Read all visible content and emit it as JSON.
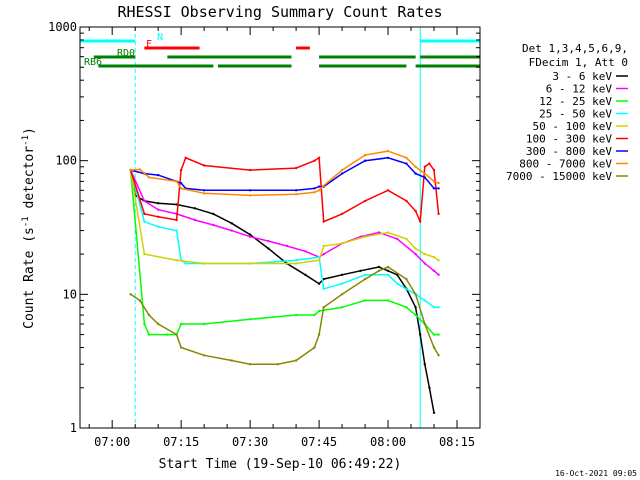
{
  "chart_data": {
    "type": "line",
    "title": "RHESSI Observing Summary Count Rates",
    "xlabel": "Start Time (19-Sep-10 06:49:22)",
    "ylabel_main": "Count Rate (s",
    "ylabel_sup1": "-1",
    "ylabel_mid": " detector",
    "ylabel_sup2": "-1",
    "ylabel_end": ")",
    "y_scale": "log",
    "ylim": [
      1,
      1000
    ],
    "xlim_minutes": [
      -7,
      80
    ],
    "y_ticks": [
      {
        "value": 1,
        "label": "1"
      },
      {
        "value": 10,
        "label": "10"
      },
      {
        "value": 100,
        "label": "100"
      },
      {
        "value": 1000,
        "label": "1000"
      }
    ],
    "x_ticks": [
      {
        "value": 0,
        "label": "07:00"
      },
      {
        "value": 15,
        "label": "07:15"
      },
      {
        "value": 30,
        "label": "07:30"
      },
      {
        "value": 45,
        "label": "07:45"
      },
      {
        "value": 60,
        "label": "08:00"
      },
      {
        "value": 75,
        "label": "08:15"
      }
    ],
    "legend_header": [
      "Det 1,3,4,5,6,9,",
      "FDecim 1, Att 0"
    ],
    "legend_placement": "right",
    "series": [
      {
        "name": "3 - 6 keV",
        "color": "#000000",
        "x": [
          4,
          5,
          7,
          10,
          14,
          18,
          22,
          26,
          30,
          34,
          38,
          42,
          45,
          46,
          50,
          54,
          58,
          60,
          62,
          64,
          66,
          67,
          68,
          69,
          70
        ],
        "y": [
          85,
          55,
          50,
          48,
          47,
          44,
          40,
          34,
          28,
          22,
          17,
          14,
          12,
          13,
          14,
          15,
          16,
          15,
          14,
          11,
          8,
          5,
          3,
          2,
          1.3
        ]
      },
      {
        "name": "6 - 12 keV",
        "color": "#ff00ff",
        "x": [
          4,
          7,
          10,
          14,
          18,
          22,
          26,
          30,
          34,
          38,
          42,
          45,
          46,
          50,
          54,
          58,
          62,
          66,
          68,
          70,
          71
        ],
        "y": [
          85,
          50,
          43,
          40,
          36,
          33,
          30,
          27,
          25,
          23,
          21,
          19,
          20,
          24,
          27,
          29,
          26,
          20,
          17,
          15,
          14
        ]
      },
      {
        "name": "12 - 25 keV",
        "color": "#00ff00",
        "x": [
          4,
          7,
          8,
          12,
          14,
          15,
          20,
          30,
          40,
          44,
          45,
          50,
          55,
          60,
          64,
          66,
          68,
          70,
          71
        ],
        "y": [
          85,
          6,
          5,
          5,
          5,
          6,
          6,
          6.5,
          7,
          7,
          7.5,
          8,
          9,
          9,
          8,
          7,
          6,
          5,
          5
        ]
      },
      {
        "name": "25 - 50 keV",
        "color": "#00ffff",
        "x": [
          4,
          7,
          10,
          14,
          15,
          16,
          20,
          30,
          40,
          45,
          46,
          50,
          55,
          60,
          62,
          66,
          68,
          70,
          71
        ],
        "y": [
          85,
          35,
          32,
          30,
          18,
          17,
          17,
          17,
          18,
          19,
          11,
          12,
          14,
          14,
          12,
          10,
          9,
          8,
          8
        ]
      },
      {
        "name": "50 - 100 keV",
        "color": "#d2d200",
        "x": [
          4,
          7,
          14,
          20,
          30,
          40,
          45,
          46,
          50,
          55,
          60,
          64,
          66,
          68,
          70,
          71
        ],
        "y": [
          85,
          20,
          18,
          17,
          17,
          17,
          18,
          23,
          24,
          27,
          29,
          26,
          22,
          20,
          19,
          18
        ]
      },
      {
        "name": "100 - 300 keV",
        "color": "#ff0000",
        "x": [
          4,
          7,
          10,
          14,
          15,
          16,
          20,
          30,
          40,
          44,
          45,
          46,
          50,
          55,
          60,
          64,
          66,
          67,
          68,
          69,
          70,
          71
        ],
        "y": [
          85,
          40,
          38,
          36,
          85,
          105,
          92,
          85,
          88,
          100,
          105,
          35,
          40,
          50,
          60,
          50,
          42,
          35,
          90,
          95,
          85,
          40
        ]
      },
      {
        "name": "300 - 800 keV",
        "color": "#0000ff",
        "x": [
          4,
          7,
          10,
          14,
          15,
          16,
          20,
          30,
          40,
          44,
          45,
          46,
          50,
          55,
          60,
          64,
          66,
          68,
          70,
          71
        ],
        "y": [
          85,
          80,
          78,
          70,
          68,
          62,
          60,
          60,
          60,
          62,
          64,
          64,
          80,
          100,
          105,
          95,
          80,
          75,
          62,
          62
        ]
      },
      {
        "name": "800 - 7000 keV",
        "color": "#ff8800",
        "x": [
          4,
          6,
          8,
          14,
          15,
          20,
          30,
          40,
          44,
          45,
          46,
          50,
          55,
          60,
          64,
          66,
          68,
          70,
          71
        ],
        "y": [
          85,
          86,
          75,
          70,
          62,
          57,
          55,
          56,
          58,
          60,
          65,
          85,
          110,
          118,
          105,
          90,
          80,
          70,
          68
        ]
      },
      {
        "name": "7000 - 15000 keV",
        "color": "#888800",
        "x": [
          4,
          6,
          8,
          10,
          14,
          15,
          20,
          26,
          30,
          36,
          40,
          44,
          45,
          46,
          50,
          55,
          58,
          60,
          64,
          66,
          68,
          70,
          71
        ],
        "y": [
          10,
          9,
          7,
          6,
          5,
          4,
          3.5,
          3.2,
          3,
          3,
          3.2,
          4,
          5,
          8,
          10,
          13,
          15,
          16,
          13,
          10,
          6,
          4,
          3.5
        ]
      }
    ],
    "attenuator_bars": [
      {
        "label": "N",
        "color": "#00ffff",
        "segments": [
          [
            -7,
            5
          ],
          [
            67,
            80
          ]
        ]
      },
      {
        "label": "F",
        "color": "#ff0000",
        "segments": [
          [
            7,
            19
          ],
          [
            40,
            43
          ]
        ]
      },
      {
        "label": "RD0",
        "color": "#008000",
        "segments": [
          [
            -4,
            5
          ],
          [
            12,
            39
          ],
          [
            45,
            66
          ],
          [
            67,
            80
          ]
        ]
      },
      {
        "label": "RB6",
        "color": "#008000",
        "segments": [
          [
            -3,
            22
          ],
          [
            23,
            39
          ],
          [
            45,
            64
          ],
          [
            66,
            80
          ]
        ]
      }
    ],
    "vertical_lines_solid": [
      -7,
      67
    ],
    "vertical_lines_dashed": [
      5,
      80
    ],
    "footer_date": "16-Oct-2021 09:05"
  }
}
